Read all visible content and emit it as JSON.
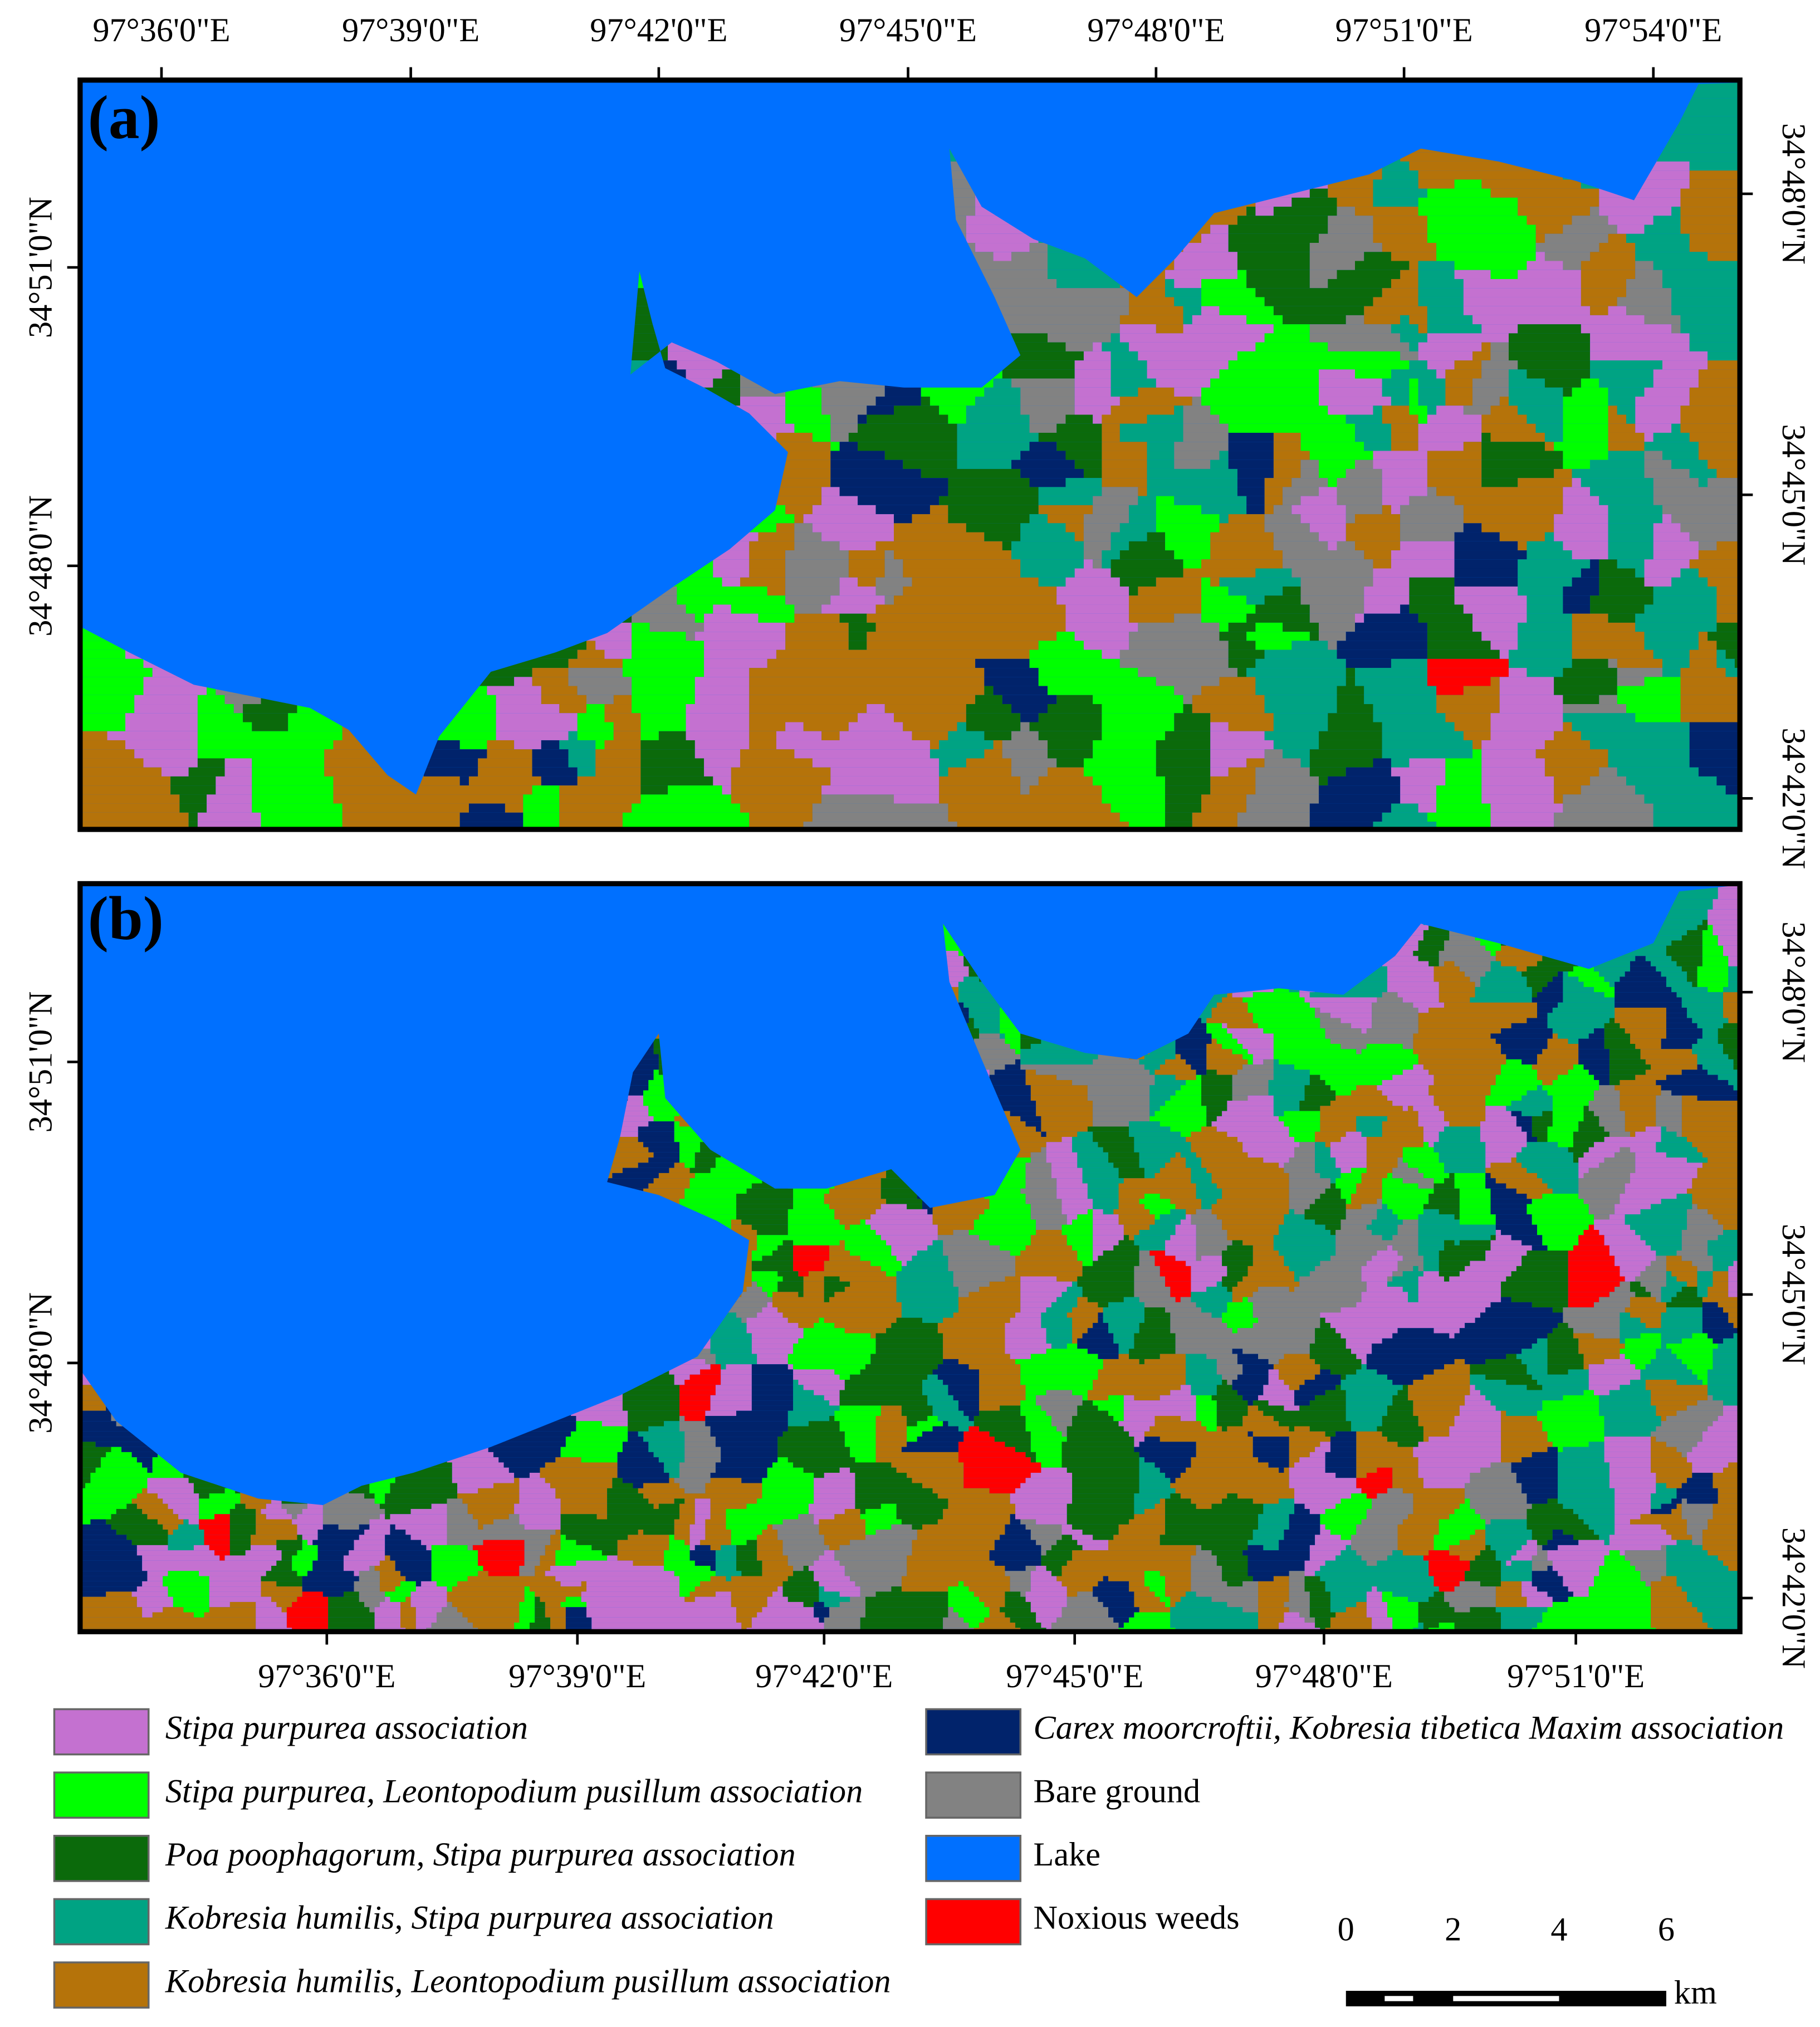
{
  "panels": [
    {
      "label": "(a)",
      "top_ticks": [
        "97°36'0\"E",
        "97°39'0\"E",
        "97°42'0\"E",
        "97°45'0\"E",
        "97°48'0\"E",
        "97°51'0\"E",
        "97°54'0\"E"
      ],
      "left_ticks": [
        "34°51'0\"N",
        "34°48'0\"N"
      ],
      "right_ticks": [
        "34°48'0\"N",
        "34°45'0\"N",
        "34°42'0\"N"
      ]
    },
    {
      "label": "(b)",
      "bottom_ticks": [
        "97°36'0\"E",
        "97°39'0\"E",
        "97°42'0\"E",
        "97°45'0\"E",
        "97°48'0\"E",
        "97°51'0\"E"
      ],
      "left_ticks": [
        "34°51'0\"N",
        "34°48'0\"N"
      ],
      "right_ticks": [
        "34°48'0\"N",
        "34°45'0\"N",
        "34°42'0\"N"
      ]
    }
  ],
  "legend": [
    {
      "label": "Stipa purpurea association",
      "color": "#c471d0"
    },
    {
      "label": "Stipa purpurea, Leontopodium pusillum association",
      "color": "#00ff00"
    },
    {
      "label": "Poa poophagorum, Stipa purpurea association",
      "color": "#0b6a0b"
    },
    {
      "label": "Kobresia humilis, Stipa purpurea association",
      "color": "#00a383"
    },
    {
      "label": "Kobresia humilis, Leontopodium pusillum association",
      "color": "#b5730a"
    },
    {
      "label": "Carex moorcroftii, Kobresia tibetica Maxim association",
      "color": "#01236b"
    },
    {
      "label": "Bare ground",
      "color": "#828282"
    },
    {
      "label": "Lake",
      "color": "#0070ff"
    },
    {
      "label": "Noxious weeds",
      "color": "#ff0000"
    }
  ],
  "scale_bar": {
    "ticks": [
      0,
      2,
      4,
      6
    ],
    "unit": "km"
  }
}
